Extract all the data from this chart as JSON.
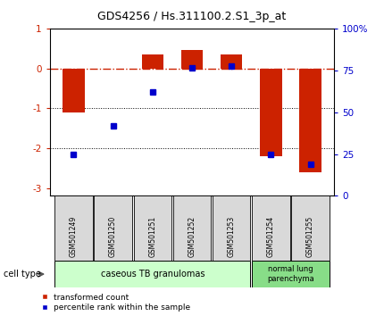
{
  "title": "GDS4256 / Hs.311100.2.S1_3p_at",
  "samples": [
    "GSM501249",
    "GSM501250",
    "GSM501251",
    "GSM501252",
    "GSM501253",
    "GSM501254",
    "GSM501255"
  ],
  "red_values": [
    -1.1,
    -0.02,
    0.35,
    0.45,
    0.35,
    -2.2,
    -2.6
  ],
  "blue_values": [
    -2.15,
    -1.45,
    -0.6,
    0.02,
    0.05,
    -2.15,
    -2.4
  ],
  "ylim_left": [
    -3.2,
    1.0
  ],
  "ylim_right": [
    0,
    100
  ],
  "yticks_left": [
    -3,
    -2,
    -1,
    0,
    1
  ],
  "yticks_right": [
    0,
    25,
    50,
    75,
    100
  ],
  "ytick_labels_right": [
    "0",
    "25",
    "50",
    "75",
    "100%"
  ],
  "red_color": "#cc2200",
  "blue_color": "#0000cc",
  "group1_label": "caseous TB granulomas",
  "group2_label": "normal lung\nparenchyma",
  "group1_indices": [
    0,
    1,
    2,
    3,
    4
  ],
  "group2_indices": [
    5,
    6
  ],
  "group1_color": "#ccffcc",
  "group2_color": "#88dd88",
  "sample_box_color": "#d9d9d9",
  "cell_type_label": "cell type",
  "legend_red": "transformed count",
  "legend_blue": "percentile rank within the sample",
  "bar_width": 0.55
}
